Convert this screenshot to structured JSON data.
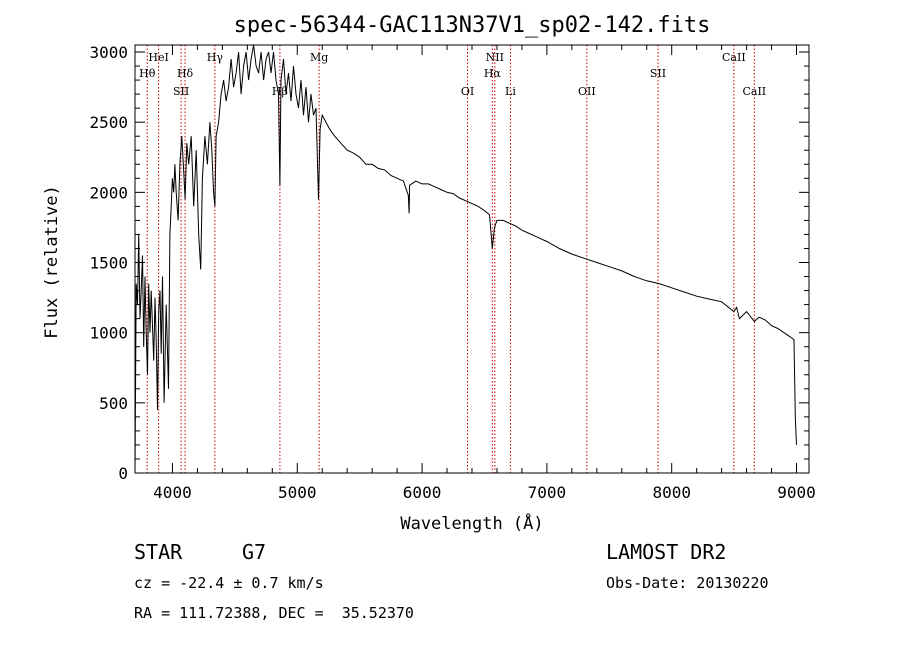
{
  "chart_data": {
    "type": "line",
    "title": "spec-56344-GAC113N37V1_sp02-142.fits",
    "xlabel": "Wavelength (Å)",
    "ylabel": "Flux (relative)",
    "xlim": [
      3700,
      9100
    ],
    "ylim": [
      0,
      3050
    ],
    "xticks": [
      4000,
      5000,
      6000,
      7000,
      8000,
      9000
    ],
    "yticks": [
      0,
      500,
      1000,
      1500,
      2000,
      2500,
      3000
    ],
    "grid": false,
    "series": [
      {
        "x": [
          3700,
          3710,
          3720,
          3730,
          3740,
          3750,
          3760,
          3770,
          3780,
          3790,
          3800,
          3810,
          3820,
          3830,
          3840,
          3850,
          3860,
          3870,
          3880,
          3890,
          3900,
          3910,
          3920,
          3933,
          3950,
          3968,
          3980,
          3990,
          4000,
          4010,
          4020,
          4030,
          4045,
          4060,
          4075,
          4090,
          4101,
          4115,
          4130,
          4150,
          4170,
          4190,
          4210,
          4226,
          4240,
          4260,
          4280,
          4300,
          4315,
          4330,
          4340,
          4350,
          4370,
          4390,
          4410,
          4430,
          4450,
          4470,
          4490,
          4510,
          4530,
          4550,
          4570,
          4590,
          4610,
          4630,
          4650,
          4670,
          4690,
          4710,
          4730,
          4750,
          4770,
          4790,
          4810,
          4830,
          4850,
          4861,
          4870,
          4890,
          4910,
          4930,
          4950,
          4970,
          4990,
          5010,
          5030,
          5050,
          5070,
          5090,
          5110,
          5130,
          5150,
          5170,
          5183,
          5200,
          5230,
          5260,
          5300,
          5350,
          5400,
          5450,
          5500,
          5550,
          5600,
          5650,
          5700,
          5750,
          5800,
          5850,
          5890,
          5896,
          5900,
          5950,
          6000,
          6050,
          6100,
          6150,
          6200,
          6250,
          6300,
          6350,
          6400,
          6450,
          6500,
          6540,
          6563,
          6580,
          6600,
          6650,
          6700,
          6750,
          6800,
          6850,
          6900,
          6950,
          7000,
          7100,
          7200,
          7300,
          7400,
          7500,
          7600,
          7700,
          7800,
          7900,
          8000,
          8100,
          8200,
          8300,
          8400,
          8498,
          8520,
          8542,
          8600,
          8662,
          8700,
          8750,
          8800,
          8850,
          8900,
          8950,
          8980,
          8990,
          9000
        ],
        "values": [
          0,
          1350,
          1200,
          1700,
          1100,
          1300,
          1550,
          900,
          1400,
          1000,
          700,
          1350,
          1000,
          1300,
          1050,
          800,
          1250,
          950,
          450,
          1150,
          1300,
          850,
          1400,
          500,
          1200,
          600,
          1700,
          1900,
          2100,
          2000,
          2200,
          2000,
          1800,
          2200,
          2400,
          2150,
          1950,
          2350,
          2200,
          2400,
          1900,
          2300,
          1700,
          1450,
          2100,
          2400,
          2200,
          2500,
          2300,
          2000,
          1900,
          2400,
          2500,
          2700,
          2800,
          2650,
          2750,
          2950,
          2750,
          2850,
          3000,
          2700,
          2900,
          3000,
          2800,
          2950,
          3050,
          2900,
          2850,
          3000,
          2800,
          2950,
          3000,
          2850,
          3000,
          2800,
          2700,
          2050,
          2800,
          2950,
          2700,
          2850,
          2650,
          2900,
          2700,
          2600,
          2800,
          2550,
          2750,
          2500,
          2700,
          2550,
          2600,
          1950,
          2450,
          2550,
          2500,
          2450,
          2400,
          2350,
          2300,
          2280,
          2250,
          2200,
          2200,
          2170,
          2160,
          2120,
          2100,
          2080,
          1980,
          1850,
          2050,
          2080,
          2060,
          2060,
          2040,
          2020,
          2000,
          1990,
          1960,
          1940,
          1920,
          1900,
          1870,
          1840,
          1600,
          1750,
          1800,
          1800,
          1780,
          1760,
          1730,
          1710,
          1690,
          1670,
          1650,
          1600,
          1560,
          1530,
          1500,
          1470,
          1440,
          1400,
          1370,
          1350,
          1320,
          1290,
          1260,
          1240,
          1220,
          1150,
          1180,
          1100,
          1150,
          1080,
          1110,
          1090,
          1050,
          1030,
          1000,
          970,
          950,
          400,
          200
        ]
      }
    ],
    "spectral_lines": [
      {
        "label": "HeI",
        "wavelength": 3889,
        "row": 1
      },
      {
        "label": "Hθ",
        "wavelength": 3798,
        "row": 2
      },
      {
        "label": "Hδ",
        "wavelength": 4101,
        "row": 2
      },
      {
        "label": "SII",
        "wavelength": 4069,
        "row": 3
      },
      {
        "label": "Hγ",
        "wavelength": 4340,
        "row": 1
      },
      {
        "label": "Hβ",
        "wavelength": 4861,
        "row": 3
      },
      {
        "label": "Mg",
        "wavelength": 5175,
        "row": 1
      },
      {
        "label": "NII",
        "wavelength": 6583,
        "row": 1
      },
      {
        "label": "Hα",
        "wavelength": 6563,
        "row": 2
      },
      {
        "label": "OI",
        "wavelength": 6364,
        "row": 3
      },
      {
        "label": "Li",
        "wavelength": 6708,
        "row": 3
      },
      {
        "label": "OII",
        "wavelength": 7320,
        "row": 3
      },
      {
        "label": "SII",
        "wavelength": 7890,
        "row": 2
      },
      {
        "label": "CaII",
        "wavelength": 8498,
        "row": 1
      },
      {
        "label": "CaII",
        "wavelength": 8662,
        "row": 3
      }
    ],
    "line_color": "#000000",
    "marker_color": "#cc0000"
  },
  "info": {
    "object_class": "STAR",
    "subclass": "G7",
    "cz": "cz = -22.4 ± 0.7 km/s",
    "coords": "RA = 111.72388, DEC =  35.52370",
    "survey": "LAMOST DR2",
    "obs_date": "Obs-Date: 20130220"
  }
}
